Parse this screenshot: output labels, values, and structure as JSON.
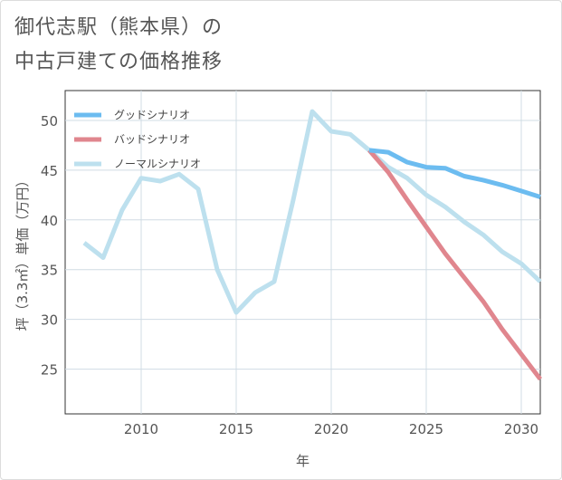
{
  "title_line1": "御代志駅（熊本県）の",
  "title_line2": "中古戸建ての価格推移",
  "chart_data": {
    "type": "line",
    "xlabel": "年",
    "ylabel": "坪（3.3㎡）単価（万円）",
    "xlim": [
      2006,
      2031
    ],
    "ylim": [
      20.5,
      53
    ],
    "x_ticks": [
      2010,
      2015,
      2020,
      2025,
      2030
    ],
    "x_tick_labels": [
      "2010",
      "2015",
      "2020",
      "2025",
      "2030"
    ],
    "y_ticks": [
      25,
      30,
      35,
      40,
      45,
      50
    ],
    "y_tick_labels": [
      "25",
      "30",
      "35",
      "40",
      "45",
      "50"
    ],
    "grid": true,
    "legend_position": "top-left",
    "series": [
      {
        "name": "グッドシナリオ",
        "color": "#6cbcf0",
        "x": [
          2022,
          2023,
          2024,
          2025,
          2026,
          2027,
          2028,
          2029,
          2030,
          2031
        ],
        "values": [
          47.0,
          46.8,
          45.8,
          45.3,
          45.2,
          44.4,
          44.0,
          43.5,
          42.9,
          42.3
        ]
      },
      {
        "name": "バッドシナリオ",
        "color": "#e0868e",
        "x": [
          2022,
          2023,
          2024,
          2025,
          2026,
          2027,
          2028,
          2029,
          2030,
          2031
        ],
        "values": [
          47.0,
          44.8,
          42.0,
          39.3,
          36.6,
          34.2,
          31.8,
          29.0,
          26.5,
          24.0
        ]
      },
      {
        "name": "ノーマルシナリオ",
        "color": "#bde0ee",
        "x": [
          2007,
          2008,
          2009,
          2010,
          2011,
          2012,
          2013,
          2014,
          2015,
          2016,
          2017,
          2018,
          2019,
          2020,
          2021,
          2022,
          2023,
          2024,
          2025,
          2026,
          2027,
          2028,
          2029,
          2030,
          2031
        ],
        "values": [
          37.7,
          36.2,
          41.0,
          44.2,
          43.9,
          44.6,
          43.1,
          35.0,
          30.7,
          32.7,
          33.8,
          42.0,
          50.9,
          48.9,
          48.6,
          47.0,
          45.3,
          44.2,
          42.5,
          41.3,
          39.8,
          38.5,
          36.8,
          35.6,
          33.8
        ]
      }
    ]
  }
}
